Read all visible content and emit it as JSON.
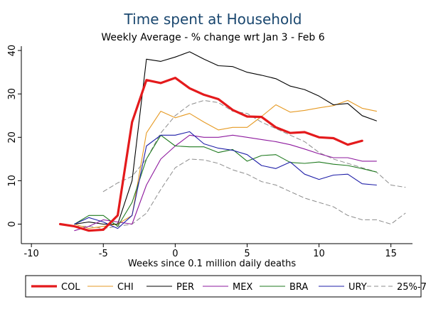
{
  "chart_data": {
    "type": "line",
    "title": "Time spent at Household",
    "subtitle": "Weekly Average - % change wrt Jan 3 - Feb 6",
    "xlabel": "Weeks since 0.1 million daily deaths",
    "ylabel": "",
    "xlim": [
      -10.7,
      16.5
    ],
    "ylim": [
      -4.5,
      41
    ],
    "xticks": [
      -10,
      -5,
      0,
      5,
      10,
      15
    ],
    "yticks": [
      0,
      10,
      20,
      30,
      40
    ],
    "grid": false,
    "legend_position": "bottom",
    "series": [
      {
        "name": "COL",
        "color": "#e41a1c",
        "width": 3.2,
        "dash": "",
        "x": [
          -8,
          -7,
          -6,
          -5,
          -4,
          -3,
          -2,
          -1,
          0,
          1,
          2,
          3,
          4,
          5,
          6,
          7,
          8,
          9,
          10,
          11,
          12,
          13
        ],
        "y": [
          0,
          -0.5,
          -1.5,
          -1.3,
          2,
          23.5,
          33.2,
          32.5,
          33.7,
          31.3,
          29.8,
          28.8,
          26.3,
          24.8,
          24.7,
          22.3,
          21,
          21.2,
          20,
          19.8,
          18.3,
          19.2
        ]
      },
      {
        "name": "CHI",
        "color": "#e69a24",
        "width": 1.1,
        "dash": "",
        "x": [
          -7,
          -6,
          -5,
          -4,
          -3,
          -2,
          -1,
          0,
          1,
          2,
          3,
          4,
          5,
          6,
          7,
          8,
          9,
          10,
          11,
          12,
          13,
          14
        ],
        "y": [
          0,
          -1,
          -0.5,
          0,
          2,
          21,
          26,
          24.5,
          25.5,
          23.5,
          21.7,
          22.3,
          22.3,
          24.8,
          27.5,
          25.8,
          26.2,
          26.8,
          27.3,
          28.5,
          26.7,
          26
        ]
      },
      {
        "name": "PER",
        "color": "#000000",
        "width": 1.1,
        "dash": "",
        "x": [
          -7,
          -6,
          -5,
          -4,
          -3,
          -2,
          -1,
          0,
          1,
          2,
          3,
          4,
          5,
          6,
          7,
          8,
          9,
          10,
          11,
          12,
          13,
          14
        ],
        "y": [
          0,
          0.5,
          0,
          0,
          10,
          38,
          37.5,
          38.5,
          39.7,
          38,
          36.5,
          36.3,
          35,
          34.3,
          33.5,
          31.8,
          31,
          29.5,
          27.5,
          27.8,
          25,
          23.8
        ]
      },
      {
        "name": "MEX",
        "color": "#8e1a9e",
        "width": 1.1,
        "dash": "",
        "x": [
          -7,
          -6,
          -5,
          -4,
          -3,
          -2,
          -1,
          0,
          1,
          2,
          3,
          4,
          5,
          6,
          7,
          8,
          9,
          10,
          11,
          12,
          13,
          14
        ],
        "y": [
          -1.5,
          -0.5,
          1,
          0.5,
          0,
          9,
          15,
          18,
          20.5,
          20,
          20,
          20.5,
          20,
          19.5,
          19,
          18.3,
          17.3,
          16.2,
          15.3,
          15.3,
          14.5,
          14.5
        ]
      },
      {
        "name": "BRA",
        "color": "#1f7a1f",
        "width": 1.1,
        "dash": "",
        "x": [
          -7,
          -6,
          -5,
          -4,
          -3,
          -2,
          -1,
          0,
          1,
          2,
          3,
          4,
          5,
          6,
          7,
          8,
          9,
          10,
          11,
          12,
          13,
          14
        ],
        "y": [
          0,
          2,
          2,
          -0.5,
          5,
          15,
          20.5,
          18,
          17.8,
          17.8,
          16.5,
          17.2,
          14.5,
          15.8,
          16,
          14.2,
          14,
          14.3,
          13.8,
          13.5,
          12.8,
          12
        ]
      },
      {
        "name": "URY",
        "color": "#1f1fa8",
        "width": 1.1,
        "dash": "",
        "x": [
          -7,
          -6,
          -5,
          -4,
          -3,
          -2,
          -1,
          0,
          1,
          2,
          3,
          4,
          5,
          6,
          7,
          8,
          9,
          10,
          11,
          12,
          13,
          14
        ],
        "y": [
          0,
          1.5,
          0.5,
          -1,
          2,
          18,
          20.5,
          20.5,
          21.3,
          18.5,
          17.5,
          17,
          16,
          13.5,
          12.8,
          14.3,
          11.5,
          10.3,
          11.3,
          11.5,
          9.3,
          9
        ]
      },
      {
        "name": "25%-75%",
        "color": "#8c8c8c",
        "width": 1.0,
        "dash": "6,4",
        "x": [
          -5,
          -4,
          -3,
          -2,
          -1,
          0,
          1,
          2,
          3,
          4,
          5,
          6,
          7,
          8,
          9,
          10,
          11,
          12,
          13,
          14,
          15,
          16
        ],
        "y": [
          7.5,
          9.5,
          11,
          15,
          21,
          25,
          27.5,
          28.5,
          28,
          26,
          25.5,
          23.5,
          22,
          20.5,
          19,
          16.5,
          15,
          14,
          13,
          12,
          9,
          8.5
        ]
      },
      {
        "name": "",
        "color": "#8c8c8c",
        "width": 1.0,
        "dash": "6,4",
        "x": [
          -7,
          -6,
          -5,
          -4,
          -3,
          -2,
          -1,
          0,
          1,
          2,
          3,
          4,
          5,
          6,
          7,
          8,
          9,
          10,
          11,
          12,
          13,
          14,
          15,
          16
        ],
        "y": [
          -0.5,
          -0.5,
          -1,
          -0.5,
          0,
          2.5,
          8,
          13,
          15,
          14.8,
          14,
          12.5,
          11.5,
          9.8,
          9,
          7.5,
          6,
          5,
          4,
          2,
          1,
          1,
          0,
          2.5
        ]
      }
    ]
  },
  "legend": [
    {
      "label": "COL",
      "color": "#e41a1c",
      "width": 3.2,
      "dash": ""
    },
    {
      "label": "CHI",
      "color": "#e69a24",
      "width": 1.1,
      "dash": ""
    },
    {
      "label": "PER",
      "color": "#000000",
      "width": 1.1,
      "dash": ""
    },
    {
      "label": "MEX",
      "color": "#8e1a9e",
      "width": 1.1,
      "dash": ""
    },
    {
      "label": "BRA",
      "color": "#1f7a1f",
      "width": 1.1,
      "dash": ""
    },
    {
      "label": "URY",
      "color": "#1f1fa8",
      "width": 1.1,
      "dash": ""
    },
    {
      "label": "25%-75%",
      "color": "#8c8c8c",
      "width": 1.0,
      "dash": "6,4"
    }
  ]
}
